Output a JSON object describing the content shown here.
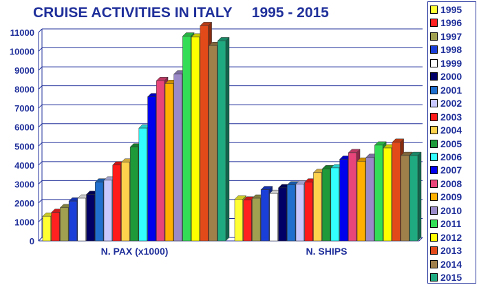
{
  "title": {
    "main": "CRUISE ACTIVITIES IN ITALY",
    "years": "1995 - 2015"
  },
  "chart_data": {
    "type": "bar",
    "title": "CRUISE ACTIVITIES IN ITALY 1995 - 2015",
    "categories": [
      "N. PAX (x1000)",
      "N. SHIPS"
    ],
    "ylim": [
      0,
      11000
    ],
    "yticks": [
      0,
      1000,
      2000,
      3000,
      4000,
      5000,
      6000,
      7000,
      8000,
      9000,
      10000,
      11000
    ],
    "grid": true,
    "legend_position": "right",
    "series": [
      {
        "name": "1995",
        "color": "#ffff33",
        "values": [
          1300,
          2200
        ]
      },
      {
        "name": "1996",
        "color": "#ff2020",
        "values": [
          1500,
          2150
        ]
      },
      {
        "name": "1997",
        "color": "#a0a050",
        "values": [
          1750,
          2250
        ]
      },
      {
        "name": "1998",
        "color": "#1a3fd8",
        "values": [
          2100,
          2700
        ]
      },
      {
        "name": "1999",
        "color": "#ffffff",
        "values": [
          2250,
          2500
        ]
      },
      {
        "name": "2000",
        "color": "#000066",
        "values": [
          2450,
          2800
        ]
      },
      {
        "name": "2001",
        "color": "#1f6fcf",
        "values": [
          3100,
          2950
        ]
      },
      {
        "name": "2002",
        "color": "#c8c8ff",
        "values": [
          3200,
          3000
        ]
      },
      {
        "name": "2003",
        "color": "#ff1a1a",
        "values": [
          4000,
          3100
        ]
      },
      {
        "name": "2004",
        "color": "#ffd24d",
        "values": [
          4150,
          3600
        ]
      },
      {
        "name": "2005",
        "color": "#1f9a3a",
        "values": [
          4950,
          3800
        ]
      },
      {
        "name": "2006",
        "color": "#33ffff",
        "values": [
          5950,
          3850
        ]
      },
      {
        "name": "2007",
        "color": "#0000ee",
        "values": [
          7600,
          4300
        ]
      },
      {
        "name": "2008",
        "color": "#e8457a",
        "values": [
          8450,
          4650
        ]
      },
      {
        "name": "2009",
        "color": "#ffb000",
        "values": [
          8300,
          4200
        ]
      },
      {
        "name": "2010",
        "color": "#9a8ac8",
        "values": [
          8800,
          4400
        ]
      },
      {
        "name": "2011",
        "color": "#33dd55",
        "values": [
          10800,
          5050
        ]
      },
      {
        "name": "2012",
        "color": "#ffff00",
        "values": [
          10750,
          4900
        ]
      },
      {
        "name": "2013",
        "color": "#e34a1a",
        "values": [
          11350,
          5200
        ]
      },
      {
        "name": "2014",
        "color": "#a0804a",
        "values": [
          10300,
          4500
        ]
      },
      {
        "name": "2015",
        "color": "#1faa80",
        "values": [
          10550,
          4500
        ]
      }
    ]
  }
}
